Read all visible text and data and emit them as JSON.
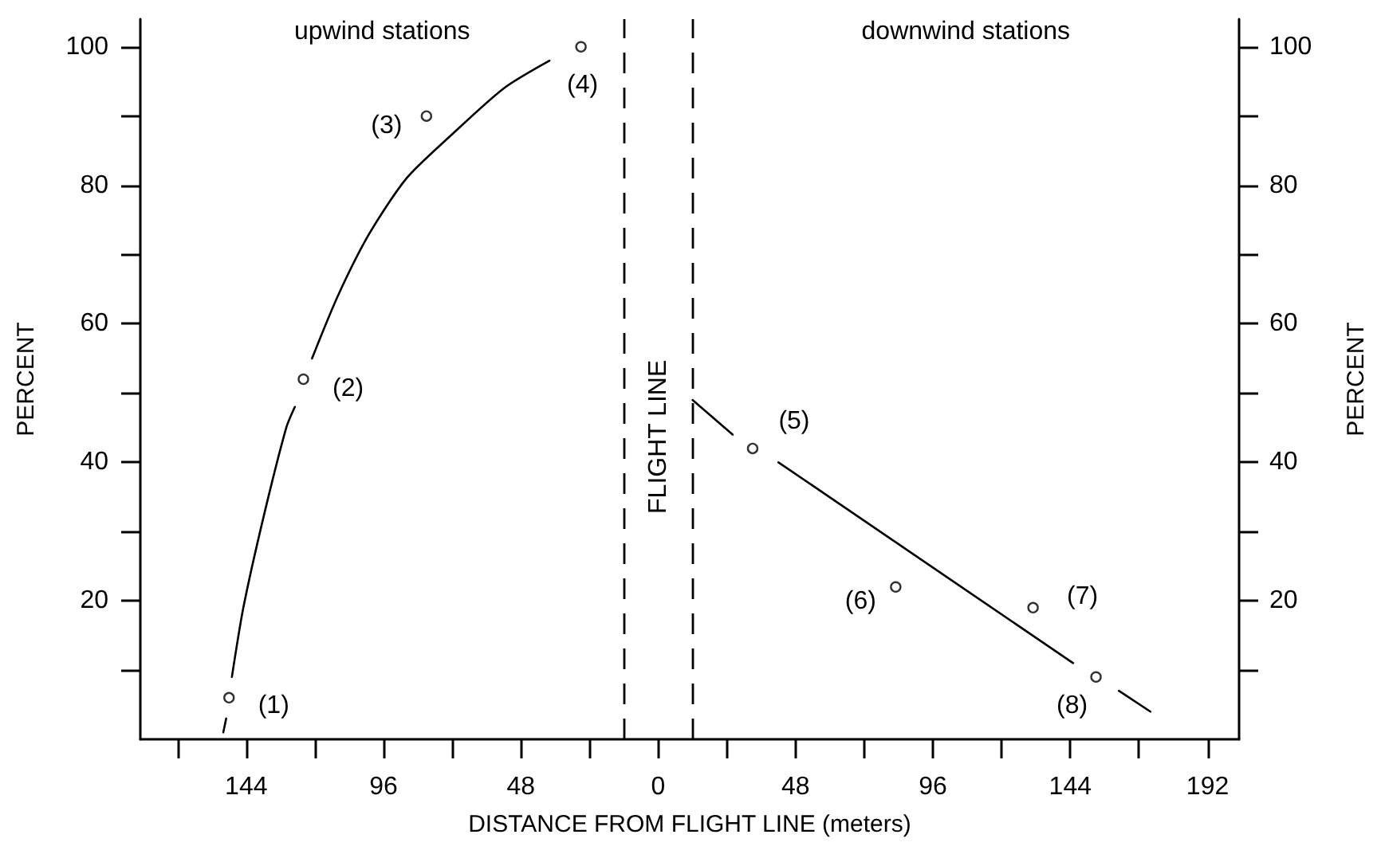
{
  "chart_data": {
    "type": "scatter",
    "xlabel": "DISTANCE FROM FLIGHT LINE (meters)",
    "ylabel": "PERCENT",
    "y2label": "PERCENT",
    "xlim": [
      -181,
      203
    ],
    "xticks": [
      {
        "value": -168,
        "label": null
      },
      {
        "value": -144,
        "label": "144"
      },
      {
        "value": -120,
        "label": null
      },
      {
        "value": -96,
        "label": "96"
      },
      {
        "value": -72,
        "label": null
      },
      {
        "value": -48,
        "label": "48"
      },
      {
        "value": -24,
        "label": null
      },
      0,
      {
        "value": 24,
        "label": null
      },
      48,
      {
        "value": 72,
        "label": null
      },
      96,
      {
        "value": 120,
        "label": null
      },
      144,
      {
        "value": 168,
        "label": null
      },
      192
    ],
    "ylim": [
      0,
      104
    ],
    "yticks": [
      {
        "value": 10,
        "label": null
      },
      20,
      {
        "value": 30,
        "label": null
      },
      40,
      {
        "value": 50,
        "label": null
      },
      60,
      {
        "value": 70,
        "label": null
      },
      80,
      {
        "value": 90,
        "label": null
      },
      100
    ],
    "y2lim": [
      0,
      104
    ],
    "y2ticks": [
      {
        "value": 10,
        "label": null
      },
      20,
      {
        "value": 30,
        "label": null
      },
      40,
      {
        "value": 50,
        "label": null
      },
      60,
      {
        "value": 70,
        "label": null
      },
      80,
      {
        "value": 90,
        "label": null
      },
      100
    ],
    "marker": "circle",
    "series": [
      {
        "color": "#000000",
        "x": [
          -150,
          -124,
          -81,
          -27,
          33,
          83,
          131,
          153
        ],
        "values": [
          6,
          52,
          90,
          100,
          42,
          22,
          19,
          9
        ]
      },
      {
        "type": "line",
        "marker": "none",
        "line_style": "solid",
        "color": "#000000",
        "x": [
          -152,
          -151,
          -150,
          -149,
          -145,
          -138,
          -130,
          -127,
          -124,
          -121,
          -112,
          -101,
          -88,
          -73,
          -54,
          -38
        ],
        "values": [
          1,
          3,
          null,
          9,
          19,
          32,
          45,
          48,
          null,
          55,
          64,
          73,
          81,
          87,
          94,
          98
        ]
      },
      {
        "type": "line",
        "marker": "none",
        "line_style": "solid",
        "color": "#000000",
        "x": [
          12,
          26,
          33,
          42,
          145,
          153,
          161,
          172
        ],
        "values": [
          49,
          44,
          null,
          40,
          11,
          null,
          7,
          4
        ]
      }
    ],
    "ref_lines": [
      {
        "axis": "x",
        "value": -12,
        "line_style": "dashed",
        "color": "#000000"
      },
      {
        "axis": "x",
        "value": 12,
        "line_style": "dashed",
        "color": "#000000"
      }
    ],
    "annotations": [
      "upwind stations",
      "FLIGHT LINE",
      "downwind stations",
      {
        "text": "(1)",
        "x": -150,
        "y": 6
      },
      {
        "text": "(2)",
        "x": -124,
        "y": 52
      },
      {
        "text": "(3)",
        "x": -81,
        "y": 90
      },
      {
        "text": "(4)",
        "x": -27,
        "y": 100
      },
      {
        "text": "(5)",
        "x": 33,
        "y": 42
      },
      {
        "text": "(6)",
        "x": 83,
        "y": 22
      },
      {
        "text": "(7)",
        "x": 131,
        "y": 19
      },
      {
        "text": "(8)",
        "x": 153,
        "y": 9
      }
    ]
  }
}
